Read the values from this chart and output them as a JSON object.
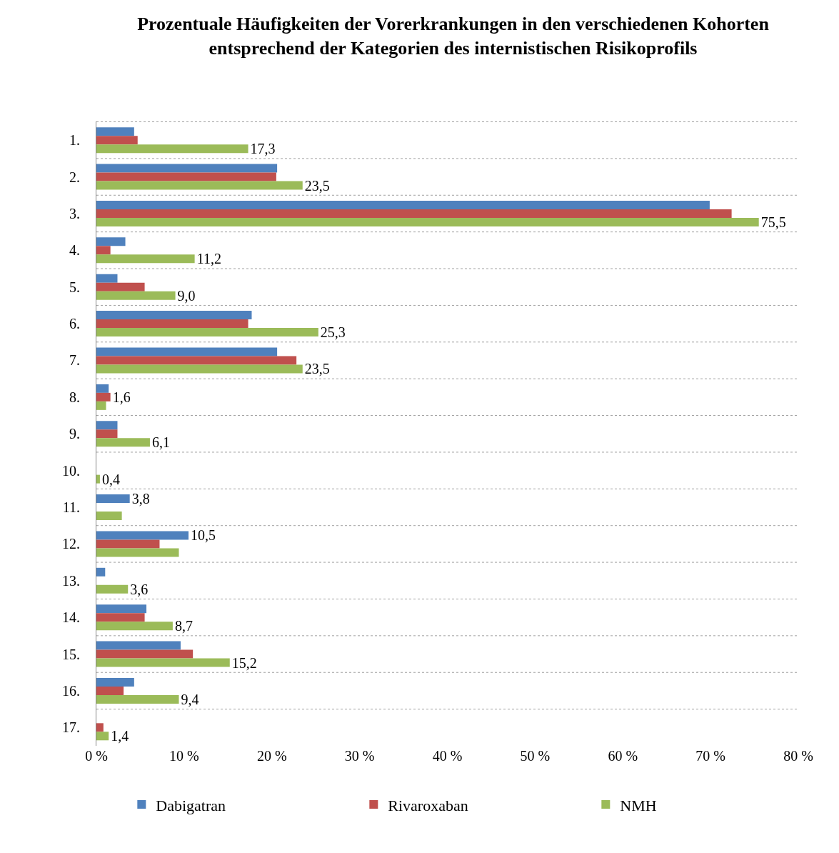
{
  "chart_data": {
    "type": "bar",
    "orientation": "horizontal",
    "title": "Prozentuale Häufigkeiten der Vorerkrankungen in den verschiedenen Kohorten entsprechend der Kategorien des internistischen Risikoprofils",
    "categories": [
      "1.",
      "2.",
      "3.",
      "4.",
      "5.",
      "6.",
      "7.",
      "8.",
      "9.",
      "10.",
      "11.",
      "12.",
      "13.",
      "14.",
      "15.",
      "16.",
      "17."
    ],
    "series": [
      {
        "name": "Dabigatran",
        "color": "#4f81bd",
        "values": [
          4.3,
          20.6,
          69.9,
          3.3,
          2.4,
          17.7,
          20.6,
          1.4,
          2.4,
          0,
          3.8,
          10.5,
          1.0,
          5.7,
          9.6,
          4.3,
          0
        ],
        "value_labels": [
          null,
          null,
          null,
          null,
          null,
          null,
          null,
          null,
          null,
          null,
          "3,8",
          "10,5",
          null,
          null,
          null,
          null,
          null
        ]
      },
      {
        "name": "Rivaroxaban",
        "color": "#c0504d",
        "values": [
          4.7,
          20.5,
          72.4,
          1.6,
          5.5,
          17.3,
          22.8,
          1.6,
          2.4,
          0,
          0,
          7.2,
          0,
          5.5,
          11.0,
          3.1,
          0.8
        ],
        "value_labels": [
          null,
          null,
          null,
          null,
          null,
          null,
          null,
          "1,6",
          null,
          null,
          null,
          null,
          null,
          null,
          null,
          null,
          null
        ]
      },
      {
        "name": "NMH",
        "color": "#9bbb59",
        "values": [
          17.3,
          23.5,
          75.5,
          11.2,
          9.0,
          25.3,
          23.5,
          1.1,
          6.1,
          0.4,
          2.9,
          9.4,
          3.6,
          8.7,
          15.2,
          9.4,
          1.4
        ],
        "value_labels": [
          "17,3",
          "23,5",
          "75,5",
          "11,2",
          "9,0",
          "25,3",
          "23,5",
          null,
          "6,1",
          "0,4",
          null,
          null,
          "3,6",
          "8,7",
          "15,2",
          "9,4",
          "1,4"
        ]
      }
    ],
    "xlim": [
      0,
      80
    ],
    "xticks": [
      {
        "value": 0,
        "label": "0 %"
      },
      {
        "value": 10,
        "label": "10 %"
      },
      {
        "value": 20,
        "label": "20 %"
      },
      {
        "value": 30,
        "label": "30 %"
      },
      {
        "value": 40,
        "label": "40 %"
      },
      {
        "value": 50,
        "label": "50 %"
      },
      {
        "value": 60,
        "label": "60 %"
      },
      {
        "value": 70,
        "label": "70 %"
      },
      {
        "value": 80,
        "label": "80 %"
      }
    ],
    "grid": "y",
    "legend": "bottom"
  }
}
